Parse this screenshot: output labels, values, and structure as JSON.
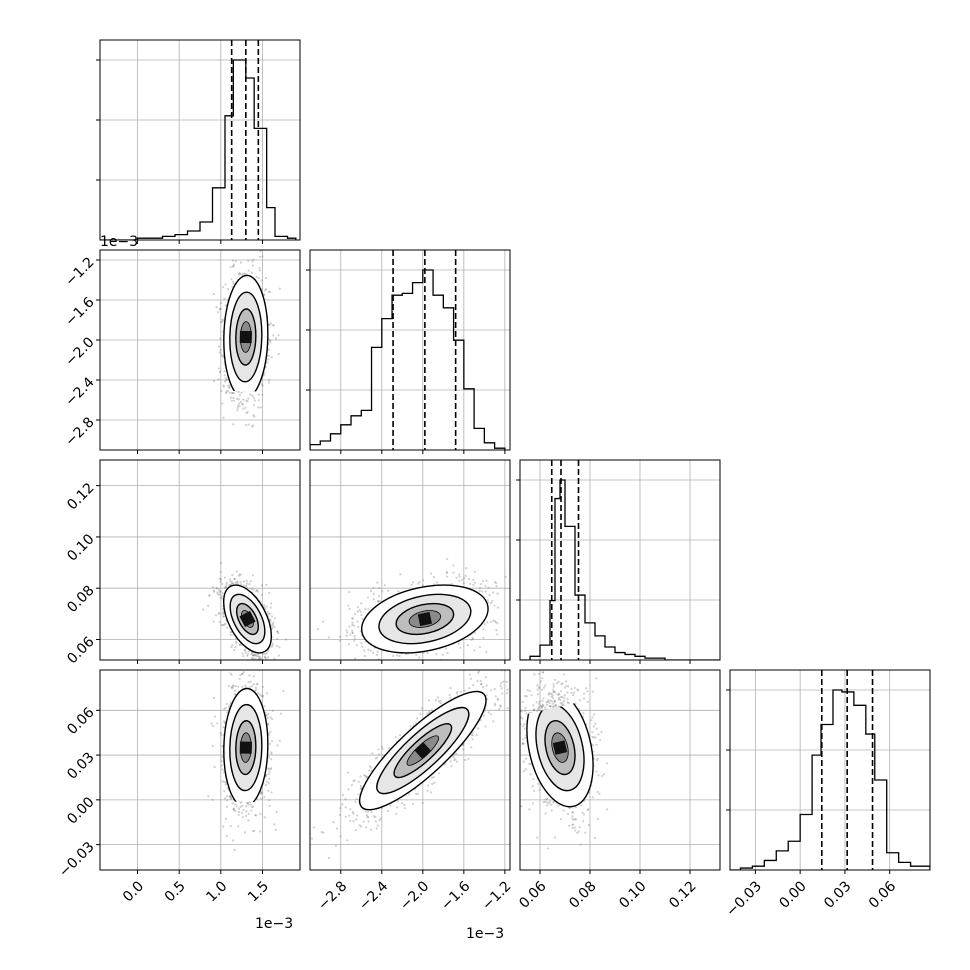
{
  "chart_data": {
    "type": "scatter",
    "subtype": "corner-plot",
    "parameters": 4,
    "grid": true,
    "quantile_lines": "dashed",
    "histograms": [
      {
        "param": 0,
        "quantiles": [
          1.13,
          1.3,
          1.45
        ],
        "xlim": [
          -0.45,
          1.95
        ],
        "bins": [
          -0.45,
          -0.3,
          -0.15,
          0.0,
          0.15,
          0.3,
          0.45,
          0.6,
          0.75,
          0.9,
          1.05,
          1.15,
          1.3,
          1.4,
          1.55,
          1.65,
          1.8,
          1.9
        ],
        "counts": [
          0.0,
          0.0,
          0.0,
          0.01,
          0.01,
          0.02,
          0.03,
          0.05,
          0.1,
          0.29,
          0.69,
          1.0,
          0.9,
          0.62,
          0.18,
          0.02,
          0.01
        ]
      },
      {
        "param": 1,
        "quantiles": [
          -2.29,
          -1.98,
          -1.68
        ],
        "xlim": [
          -3.1,
          -1.15
        ],
        "bins": [
          -3.1,
          -3.0,
          -2.9,
          -2.8,
          -2.7,
          -2.6,
          -2.5,
          -2.4,
          -2.3,
          -2.2,
          -2.1,
          -2.0,
          -1.9,
          -1.8,
          -1.7,
          -1.6,
          -1.5,
          -1.4,
          -1.3,
          -1.2
        ],
        "counts": [
          0.03,
          0.05,
          0.09,
          0.14,
          0.19,
          0.22,
          0.57,
          0.73,
          0.86,
          0.87,
          0.93,
          1.0,
          0.86,
          0.79,
          0.61,
          0.34,
          0.12,
          0.04,
          0.01
        ]
      },
      {
        "param": 2,
        "quantiles": [
          0.0647,
          0.0684,
          0.0754
        ],
        "xlim": [
          0.052,
          0.132
        ],
        "bins": [
          0.052,
          0.056,
          0.06,
          0.064,
          0.066,
          0.068,
          0.07,
          0.074,
          0.078,
          0.082,
          0.086,
          0.09,
          0.094,
          0.098,
          0.102,
          0.11,
          0.118,
          0.132
        ],
        "counts": [
          0.0,
          0.02,
          0.08,
          0.32,
          0.87,
          0.97,
          0.72,
          0.35,
          0.2,
          0.13,
          0.07,
          0.04,
          0.03,
          0.02,
          0.01,
          0.0,
          0.0
        ]
      },
      {
        "param": 3,
        "quantiles": [
          0.0145,
          0.0315,
          0.0485
        ],
        "xlim": [
          -0.047,
          0.087
        ],
        "bins": [
          -0.047,
          -0.04,
          -0.032,
          -0.024,
          -0.016,
          -0.008,
          0.0,
          0.008,
          0.014,
          0.022,
          0.028,
          0.036,
          0.044,
          0.05,
          0.058,
          0.066,
          0.074,
          0.087
        ],
        "counts": [
          0.0,
          0.01,
          0.02,
          0.05,
          0.1,
          0.15,
          0.29,
          0.6,
          0.76,
          0.94,
          0.93,
          0.86,
          0.71,
          0.47,
          0.09,
          0.04,
          0.02
        ]
      }
    ],
    "ylims": {
      "1": [
        -3.1,
        -1.1
      ],
      "2": [
        0.052,
        0.13
      ],
      "3": [
        -0.047,
        0.087
      ]
    },
    "joint": [
      {
        "x": 0,
        "y": 1,
        "center": [
          1.3,
          -1.97
        ],
        "sd": [
          0.12,
          0.28
        ],
        "corr": 0.05
      },
      {
        "x": 0,
        "y": 2,
        "center": [
          1.32,
          0.068
        ],
        "sd": [
          0.13,
          0.006
        ],
        "corr": -0.5
      },
      {
        "x": 1,
        "y": 2,
        "center": [
          -1.98,
          0.068
        ],
        "sd": [
          0.28,
          0.006
        ],
        "corr": 0.3
      },
      {
        "x": 0,
        "y": 3,
        "center": [
          1.3,
          0.035
        ],
        "sd": [
          0.12,
          0.018
        ],
        "corr": 0.05
      },
      {
        "x": 1,
        "y": 3,
        "center": [
          -2.0,
          0.033
        ],
        "sd": [
          0.28,
          0.018
        ],
        "corr": 0.85
      },
      {
        "x": 2,
        "y": 3,
        "center": [
          0.068,
          0.035
        ],
        "sd": [
          0.006,
          0.018
        ],
        "corr": -0.3
      }
    ],
    "xticks": [
      {
        "values": [
          0.0,
          0.5,
          1.0,
          1.5
        ],
        "labels": [
          "0.0",
          "0.5",
          "1.0",
          "1.5"
        ]
      },
      {
        "values": [
          -2.8,
          -2.4,
          -2.0,
          -1.6,
          -1.2
        ],
        "labels": [
          "−2.8",
          "−2.4",
          "−2.0",
          "−1.6",
          "−1.2"
        ]
      },
      {
        "values": [
          0.06,
          0.08,
          0.1,
          0.12
        ],
        "labels": [
          "0.06",
          "0.08",
          "0.10",
          "0.12"
        ]
      },
      {
        "values": [
          -0.03,
          0.0,
          0.03,
          0.06
        ],
        "labels": [
          "−0.03",
          "0.00",
          "0.03",
          "0.06"
        ]
      }
    ],
    "yticks": [
      null,
      {
        "values": [
          -1.2,
          -1.6,
          -2.0,
          -2.4,
          -2.8
        ],
        "labels": [
          "−1.2",
          "−1.6",
          "−2.0",
          "−2.4",
          "−2.8"
        ]
      },
      {
        "values": [
          0.12,
          0.1,
          0.08,
          0.06
        ],
        "labels": [
          "0.12",
          "0.10",
          "0.08",
          "0.06"
        ]
      },
      {
        "values": [
          0.06,
          0.03,
          0.0,
          -0.03
        ],
        "labels": [
          "0.06",
          "0.03",
          "0.00",
          "−0.03"
        ]
      }
    ],
    "offset_labels": [
      {
        "text": "1e−3",
        "where": "axis-0 bottom"
      },
      {
        "text": "1e−3",
        "where": "axis-1 bottom"
      },
      {
        "text": "1e−3",
        "where": "axis-1 left"
      }
    ]
  }
}
